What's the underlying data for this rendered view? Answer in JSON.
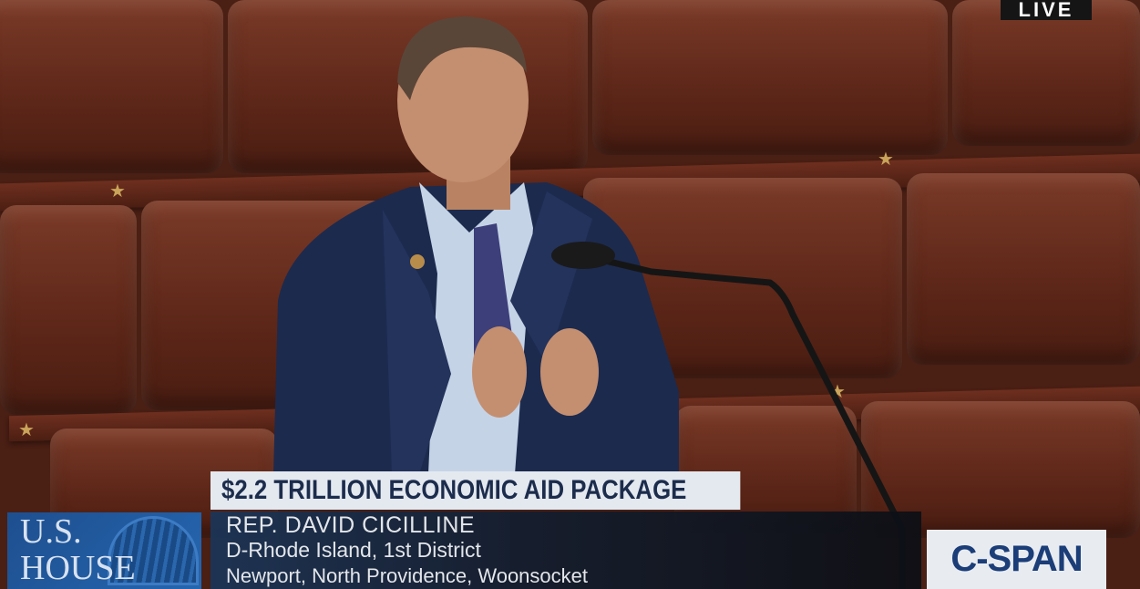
{
  "broadcast": {
    "live_badge": "LIVE",
    "network_logo": "C-SPAN",
    "chamber_logo": "U.S. HOUSE",
    "chamber_logo_lines": [
      "U.S.",
      "HOUSE"
    ]
  },
  "lower_third": {
    "headline": "$2.2 TRILLION ECONOMIC AID PACKAGE",
    "speaker_name": "REP. DAVID CICILLINE",
    "speaker_district": "D-Rhode Island, 1st District",
    "speaker_towns": "Newport, North Providence, Woonsocket"
  },
  "colors": {
    "headline_bg": "#e4e9f0",
    "headline_text": "#1c2c4c",
    "nameplate_bg": "#1b3558",
    "cspan_blue": "#1b3d78",
    "seat_leather": "#6a2e1e"
  }
}
